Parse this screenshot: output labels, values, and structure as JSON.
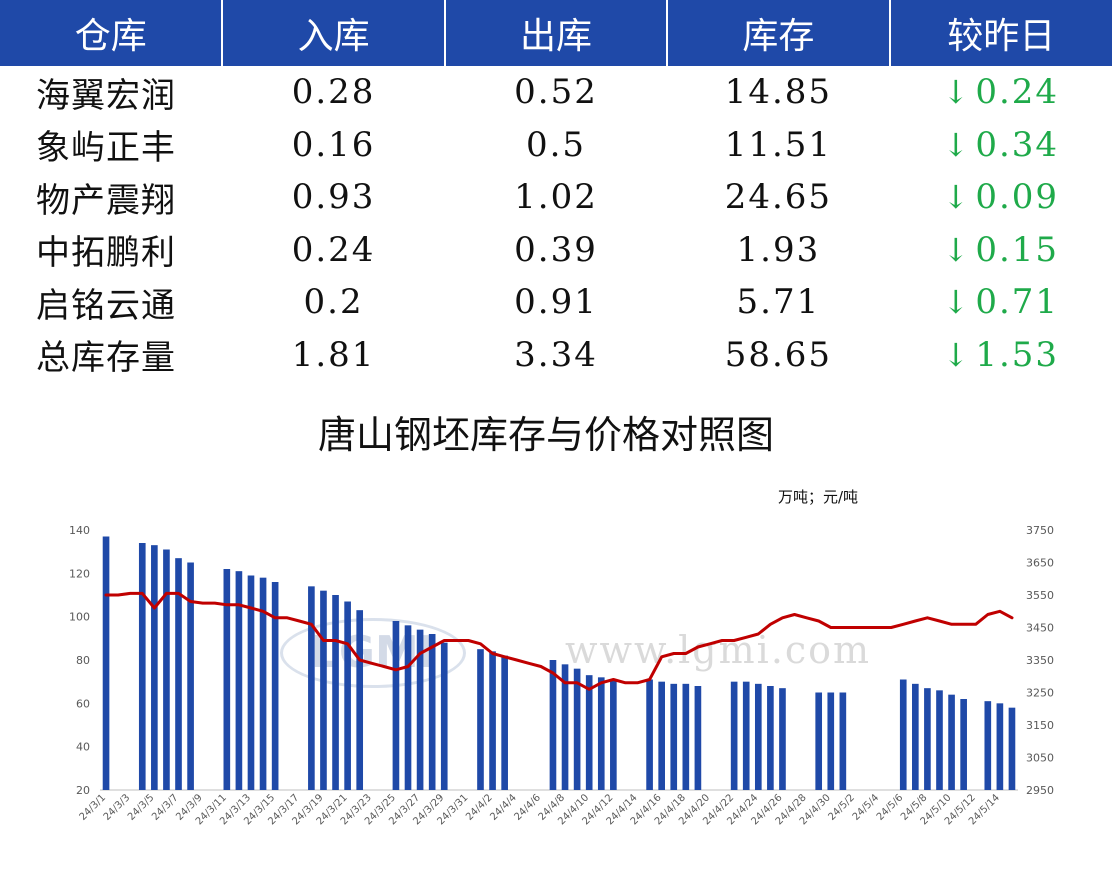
{
  "table": {
    "headers": [
      "仓库",
      "入库",
      "出库",
      "库存",
      "较昨日"
    ],
    "rows": [
      {
        "name": "海翼宏润",
        "in": "0.28",
        "out": "0.52",
        "stock": "14.85",
        "change": "0.24"
      },
      {
        "name": "象屿正丰",
        "in": "0.16",
        "out": "0.5",
        "stock": "11.51",
        "change": "0.34"
      },
      {
        "name": "物产震翔",
        "in": "0.93",
        "out": "1.02",
        "stock": "24.65",
        "change": "0.09"
      },
      {
        "name": "中拓鹏利",
        "in": "0.24",
        "out": "0.39",
        "stock": "1.93",
        "change": "0.15"
      },
      {
        "name": "启铭云通",
        "in": "0.2",
        "out": "0.91",
        "stock": "5.71",
        "change": "0.71"
      },
      {
        "name": "总库存量",
        "in": "1.81",
        "out": "3.34",
        "stock": "58.65",
        "change": "1.53"
      }
    ],
    "change_arrow": "↓",
    "down_color": "#1faa4a",
    "header_bg": "#1f49a8"
  },
  "watermark": {
    "logo": "LGMI",
    "url": "www.lgmi.com"
  },
  "chart_data": {
    "type": "bar+line",
    "title": "唐山钢坯库存与价格对照图",
    "unit_label": "万吨；元/吨",
    "left_axis": {
      "min": 20,
      "max": 140,
      "ticks": [
        20,
        40,
        60,
        80,
        100,
        120,
        140
      ]
    },
    "right_axis": {
      "min": 2950,
      "max": 3750,
      "ticks": [
        2950,
        3050,
        3150,
        3250,
        3350,
        3450,
        3550,
        3650,
        3750
      ]
    },
    "bar_color": "#1f49a8",
    "line_color": "#c00000",
    "dates": [
      "24/3/1",
      "24/3/2",
      "24/3/3",
      "24/3/4",
      "24/3/5",
      "24/3/6",
      "24/3/7",
      "24/3/8",
      "24/3/9",
      "24/3/10",
      "24/3/11",
      "24/3/12",
      "24/3/13",
      "24/3/14",
      "24/3/15",
      "24/3/16",
      "24/3/17",
      "24/3/18",
      "24/3/19",
      "24/3/20",
      "24/3/21",
      "24/3/22",
      "24/3/23",
      "24/3/24",
      "24/3/25",
      "24/3/26",
      "24/3/27",
      "24/3/28",
      "24/3/29",
      "24/3/30",
      "24/3/31",
      "24/4/1",
      "24/4/2",
      "24/4/3",
      "24/4/4",
      "24/4/5",
      "24/4/6",
      "24/4/7",
      "24/4/8",
      "24/4/9",
      "24/4/10",
      "24/4/11",
      "24/4/12",
      "24/4/13",
      "24/4/14",
      "24/4/15",
      "24/4/16",
      "24/4/17",
      "24/4/18",
      "24/4/19",
      "24/4/20",
      "24/4/21",
      "24/4/22",
      "24/4/23",
      "24/4/24",
      "24/4/25",
      "24/4/26",
      "24/4/27",
      "24/4/28",
      "24/4/29",
      "24/4/30",
      "24/5/1",
      "24/5/2",
      "24/5/3",
      "24/5/4",
      "24/5/5",
      "24/5/6",
      "24/5/7",
      "24/5/8",
      "24/5/9",
      "24/5/10",
      "24/5/11",
      "24/5/12",
      "24/5/13",
      "24/5/14",
      "24/5/15"
    ],
    "tick_labels": [
      "24/3/1",
      "24/3/3",
      "24/3/5",
      "24/3/7",
      "24/3/9",
      "24/3/11",
      "24/3/13",
      "24/3/15",
      "24/3/17",
      "24/3/19",
      "24/3/21",
      "24/3/23",
      "24/3/25",
      "24/3/27",
      "24/3/29",
      "24/3/31",
      "24/4/2",
      "24/4/4",
      "24/4/6",
      "24/4/8",
      "24/4/10",
      "24/4/12",
      "24/4/14",
      "24/4/16",
      "24/4/18",
      "24/4/20",
      "24/4/22",
      "24/4/24",
      "24/4/26",
      "24/4/28",
      "24/4/30",
      "24/5/2",
      "24/5/4",
      "24/5/6",
      "24/5/8",
      "24/5/10",
      "24/5/12",
      "24/5/14"
    ],
    "inventory": [
      137,
      null,
      null,
      134,
      133,
      131,
      127,
      125,
      null,
      null,
      122,
      121,
      119,
      118,
      116,
      null,
      null,
      114,
      112,
      110,
      107,
      103,
      null,
      null,
      98,
      96,
      94,
      92,
      88,
      null,
      null,
      85,
      84,
      82,
      null,
      null,
      null,
      80,
      78,
      76,
      73,
      72,
      71,
      null,
      null,
      71,
      70,
      69,
      69,
      68,
      null,
      null,
      70,
      70,
      69,
      68,
      67,
      null,
      null,
      65,
      65,
      65,
      null,
      null,
      null,
      null,
      71,
      69,
      67,
      66,
      64,
      62,
      null,
      61,
      60,
      58
    ],
    "price": [
      3550,
      3550,
      3555,
      3555,
      3510,
      3555,
      3555,
      3530,
      3525,
      3525,
      3520,
      3520,
      3510,
      3500,
      3480,
      3480,
      3470,
      3460,
      3410,
      3410,
      3400,
      3350,
      3340,
      3330,
      3320,
      3330,
      3370,
      3390,
      3410,
      3410,
      3410,
      3400,
      3370,
      3360,
      3350,
      3340,
      3330,
      3310,
      3280,
      3280,
      3260,
      3280,
      3290,
      3280,
      3280,
      3290,
      3360,
      3370,
      3370,
      3390,
      3400,
      3410,
      3410,
      3420,
      3430,
      3460,
      3480,
      3490,
      3480,
      3470,
      3450,
      3450,
      3450,
      3450,
      3450,
      3450,
      3460,
      3470,
      3480,
      3470,
      3460,
      3460,
      3460,
      3490,
      3500,
      3480
    ]
  }
}
